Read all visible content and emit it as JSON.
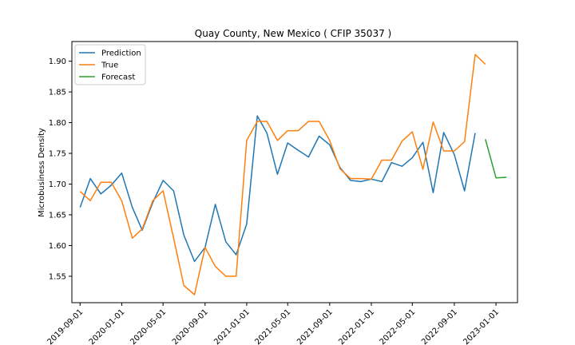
{
  "chart_data": {
    "type": "line",
    "title": "Quay County, New Mexico ( CFIP 35037 )",
    "xlabel": "",
    "ylabel": "Microbusiness Density",
    "ylim": [
      1.507,
      1.932
    ],
    "yticks": [
      1.55,
      1.6,
      1.65,
      1.7,
      1.75,
      1.8,
      1.85,
      1.9
    ],
    "xticks": [
      "2019-09-01",
      "2020-01-01",
      "2020-05-01",
      "2020-09-01",
      "2021-01-01",
      "2021-05-01",
      "2021-09-01",
      "2022-01-01",
      "2022-05-01",
      "2022-09-01",
      "2023-01-01"
    ],
    "legend_position": "top-left",
    "grid": false,
    "series": [
      {
        "name": "Prediction",
        "color": "#1f77b4",
        "x": [
          "2019-09-01",
          "2019-10-01",
          "2019-11-01",
          "2019-12-01",
          "2020-01-01",
          "2020-02-01",
          "2020-03-01",
          "2020-04-01",
          "2020-05-01",
          "2020-06-01",
          "2020-07-01",
          "2020-08-01",
          "2020-09-01",
          "2020-10-01",
          "2020-11-01",
          "2020-12-01",
          "2021-01-01",
          "2021-02-01",
          "2021-03-01",
          "2021-04-01",
          "2021-05-01",
          "2021-06-01",
          "2021-07-01",
          "2021-08-01",
          "2021-09-01",
          "2021-10-01",
          "2021-11-01",
          "2021-12-01",
          "2022-01-01",
          "2022-02-01",
          "2022-03-01",
          "2022-04-01",
          "2022-05-01",
          "2022-06-01",
          "2022-07-01",
          "2022-08-01",
          "2022-09-01",
          "2022-10-01",
          "2022-11-01"
        ],
        "values": [
          1.662,
          1.709,
          1.684,
          1.698,
          1.718,
          1.662,
          1.625,
          1.67,
          1.706,
          1.689,
          1.617,
          1.574,
          1.597,
          1.667,
          1.606,
          1.585,
          1.635,
          1.811,
          1.783,
          1.716,
          1.767,
          1.755,
          1.744,
          1.778,
          1.764,
          1.727,
          1.706,
          1.704,
          1.708,
          1.704,
          1.735,
          1.729,
          1.743,
          1.768,
          1.686,
          1.784,
          1.748,
          1.689,
          1.783
        ]
      },
      {
        "name": "True",
        "color": "#ff7f0e",
        "x": [
          "2019-09-01",
          "2019-10-01",
          "2019-11-01",
          "2019-12-01",
          "2020-01-01",
          "2020-02-01",
          "2020-03-01",
          "2020-04-01",
          "2020-05-01",
          "2020-06-01",
          "2020-07-01",
          "2020-08-01",
          "2020-09-01",
          "2020-10-01",
          "2020-11-01",
          "2020-12-01",
          "2021-01-01",
          "2021-02-01",
          "2021-03-01",
          "2021-04-01",
          "2021-05-01",
          "2021-06-01",
          "2021-07-01",
          "2021-08-01",
          "2021-09-01",
          "2021-10-01",
          "2021-11-01",
          "2021-12-01",
          "2022-01-01",
          "2022-02-01",
          "2022-03-01",
          "2022-04-01",
          "2022-05-01",
          "2022-06-01",
          "2022-07-01",
          "2022-08-01",
          "2022-09-01",
          "2022-10-01",
          "2022-11-01",
          "2022-12-01"
        ],
        "values": [
          1.688,
          1.673,
          1.703,
          1.703,
          1.673,
          1.612,
          1.627,
          1.673,
          1.689,
          1.612,
          1.535,
          1.52,
          1.597,
          1.566,
          1.55,
          1.55,
          1.771,
          1.802,
          1.802,
          1.771,
          1.787,
          1.787,
          1.802,
          1.802,
          1.771,
          1.725,
          1.709,
          1.709,
          1.708,
          1.739,
          1.739,
          1.77,
          1.785,
          1.724,
          1.801,
          1.754,
          1.754,
          1.769,
          1.911,
          1.895
        ]
      },
      {
        "name": "Forecast",
        "color": "#2ca02c",
        "x": [
          "2022-12-01",
          "2023-01-01",
          "2023-02-01"
        ],
        "values": [
          1.773,
          1.71,
          1.711
        ]
      }
    ]
  }
}
